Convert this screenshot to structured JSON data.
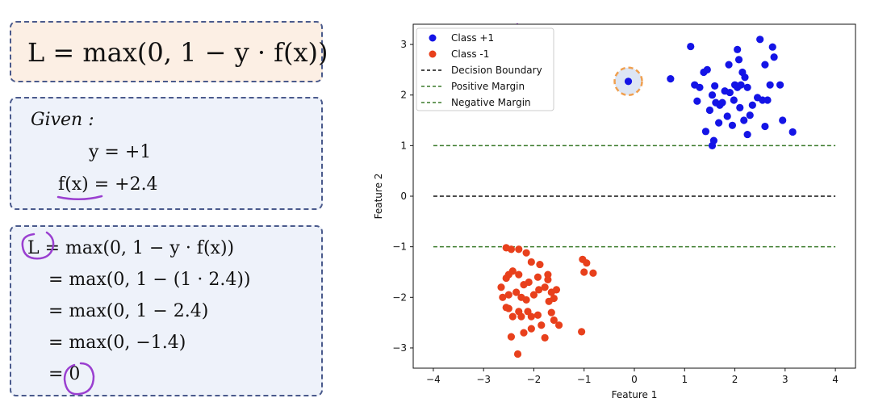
{
  "formula_box": {
    "text": "L = max(0, 1 − y · f(x))"
  },
  "given_box": {
    "heading": "Given :",
    "y_line": "y = +1",
    "fx_line": "f(x) = +2.4"
  },
  "steps_box": {
    "lines": [
      "L = max(0, 1 − y · f(x))",
      "= max(0, 1 − (1 · 2.4))",
      "= max(0, 1 − 2.4)",
      "= max(0, −1.4)",
      "= 0"
    ]
  },
  "colors": {
    "box_border": "#4a5a8c",
    "formula_bg": "#fcefe4",
    "given_bg": "#eef2fa",
    "annotation": "#9a3fd0",
    "class_pos": "#1414e6",
    "class_neg": "#e8401c",
    "margin": "#3a7a2a",
    "highlight": "#f0a050"
  },
  "chart_data": {
    "type": "scatter",
    "xlabel": "Feature 1",
    "ylabel": "Feature 2",
    "xlim": [
      -4.4,
      4.4
    ],
    "ylim": [
      -3.4,
      3.4
    ],
    "xticks": [
      -4,
      -3,
      -2,
      -1,
      0,
      1,
      2,
      3,
      4
    ],
    "yticks": [
      -3,
      -2,
      -1,
      0,
      1,
      2,
      3
    ],
    "xtick_labels": [
      "−4",
      "−3",
      "−2",
      "−1",
      "0",
      "1",
      "2",
      "3",
      "4"
    ],
    "ytick_labels": [
      "−3",
      "−2",
      "−1",
      "0",
      "1",
      "2",
      "3"
    ],
    "grid": false,
    "legend_position": "top-left",
    "series": [
      {
        "name": "Class +1",
        "color": "#1414e6",
        "points": [
          [
            0.72,
            2.32
          ],
          [
            1.12,
            2.96
          ],
          [
            1.2,
            2.2
          ],
          [
            1.25,
            1.88
          ],
          [
            1.38,
            2.45
          ],
          [
            1.45,
            2.5
          ],
          [
            1.42,
            1.28
          ],
          [
            1.55,
            1.0
          ],
          [
            1.58,
            1.1
          ],
          [
            1.5,
            1.7
          ],
          [
            1.62,
            1.85
          ],
          [
            1.7,
            1.8
          ],
          [
            1.55,
            2.0
          ],
          [
            1.6,
            2.18
          ],
          [
            1.75,
            1.85
          ],
          [
            1.8,
            2.08
          ],
          [
            1.85,
            1.58
          ],
          [
            1.88,
            2.6
          ],
          [
            2.0,
            2.2
          ],
          [
            2.05,
            2.15
          ],
          [
            1.98,
            1.9
          ],
          [
            2.08,
            2.7
          ],
          [
            2.15,
            2.45
          ],
          [
            2.12,
            2.2
          ],
          [
            2.2,
            2.35
          ],
          [
            2.25,
            2.15
          ],
          [
            2.3,
            1.6
          ],
          [
            2.18,
            1.5
          ],
          [
            2.25,
            1.22
          ],
          [
            2.35,
            1.8
          ],
          [
            2.45,
            1.95
          ],
          [
            2.5,
            3.1
          ],
          [
            2.55,
            1.9
          ],
          [
            2.6,
            2.6
          ],
          [
            2.65,
            1.9
          ],
          [
            2.7,
            2.2
          ],
          [
            2.75,
            2.95
          ],
          [
            2.78,
            2.75
          ],
          [
            2.9,
            2.2
          ],
          [
            2.95,
            1.5
          ],
          [
            3.15,
            1.27
          ],
          [
            2.05,
            2.9
          ],
          [
            2.1,
            1.75
          ],
          [
            1.95,
            1.4
          ],
          [
            1.3,
            2.15
          ],
          [
            1.9,
            2.05
          ],
          [
            2.6,
            1.38
          ],
          [
            1.68,
            1.45
          ]
        ]
      },
      {
        "name": "Class -1",
        "color": "#e8401c",
        "points": [
          [
            -2.55,
            -1.02
          ],
          [
            -2.45,
            -1.05
          ],
          [
            -2.3,
            -1.05
          ],
          [
            -2.15,
            -1.12
          ],
          [
            -2.05,
            -1.3
          ],
          [
            -1.88,
            -1.35
          ],
          [
            -2.5,
            -1.55
          ],
          [
            -2.55,
            -1.62
          ],
          [
            -2.42,
            -1.48
          ],
          [
            -2.3,
            -1.55
          ],
          [
            -2.2,
            -1.75
          ],
          [
            -2.1,
            -1.7
          ],
          [
            -1.92,
            -1.6
          ],
          [
            -1.72,
            -1.55
          ],
          [
            -2.65,
            -1.8
          ],
          [
            -2.5,
            -1.95
          ],
          [
            -2.35,
            -1.9
          ],
          [
            -2.25,
            -2.0
          ],
          [
            -2.15,
            -2.05
          ],
          [
            -2.0,
            -1.95
          ],
          [
            -1.9,
            -1.85
          ],
          [
            -1.78,
            -1.8
          ],
          [
            -1.65,
            -1.9
          ],
          [
            -1.55,
            -1.85
          ],
          [
            -1.7,
            -2.08
          ],
          [
            -2.55,
            -2.2
          ],
          [
            -2.5,
            -2.22
          ],
          [
            -2.3,
            -2.28
          ],
          [
            -2.12,
            -2.28
          ],
          [
            -1.92,
            -2.35
          ],
          [
            -1.65,
            -2.3
          ],
          [
            -2.42,
            -2.38
          ],
          [
            -2.25,
            -2.38
          ],
          [
            -2.05,
            -2.38
          ],
          [
            -1.85,
            -2.55
          ],
          [
            -1.6,
            -2.45
          ],
          [
            -1.5,
            -2.55
          ],
          [
            -2.45,
            -2.78
          ],
          [
            -2.2,
            -2.7
          ],
          [
            -2.05,
            -2.62
          ],
          [
            -1.78,
            -2.8
          ],
          [
            -1.05,
            -2.68
          ],
          [
            -2.32,
            -3.12
          ],
          [
            -1.03,
            -1.25
          ],
          [
            -0.95,
            -1.32
          ],
          [
            -0.82,
            -1.52
          ],
          [
            -1.0,
            -1.5
          ],
          [
            -1.6,
            -2.02
          ],
          [
            -1.72,
            -1.65
          ],
          [
            -2.62,
            -2.0
          ]
        ]
      },
      {
        "name": "Highlighted point",
        "color": "#1414e6",
        "points": [
          [
            -0.12,
            2.27
          ]
        ]
      }
    ],
    "lines": [
      {
        "name": "Decision Boundary",
        "y": 0,
        "style": "dashed",
        "color": "#111111"
      },
      {
        "name": "Positive Margin",
        "y": 1,
        "style": "dashed",
        "color": "#3a7a2a"
      },
      {
        "name": "Negative Margin",
        "y": -1,
        "style": "dashed",
        "color": "#3a7a2a"
      }
    ]
  }
}
